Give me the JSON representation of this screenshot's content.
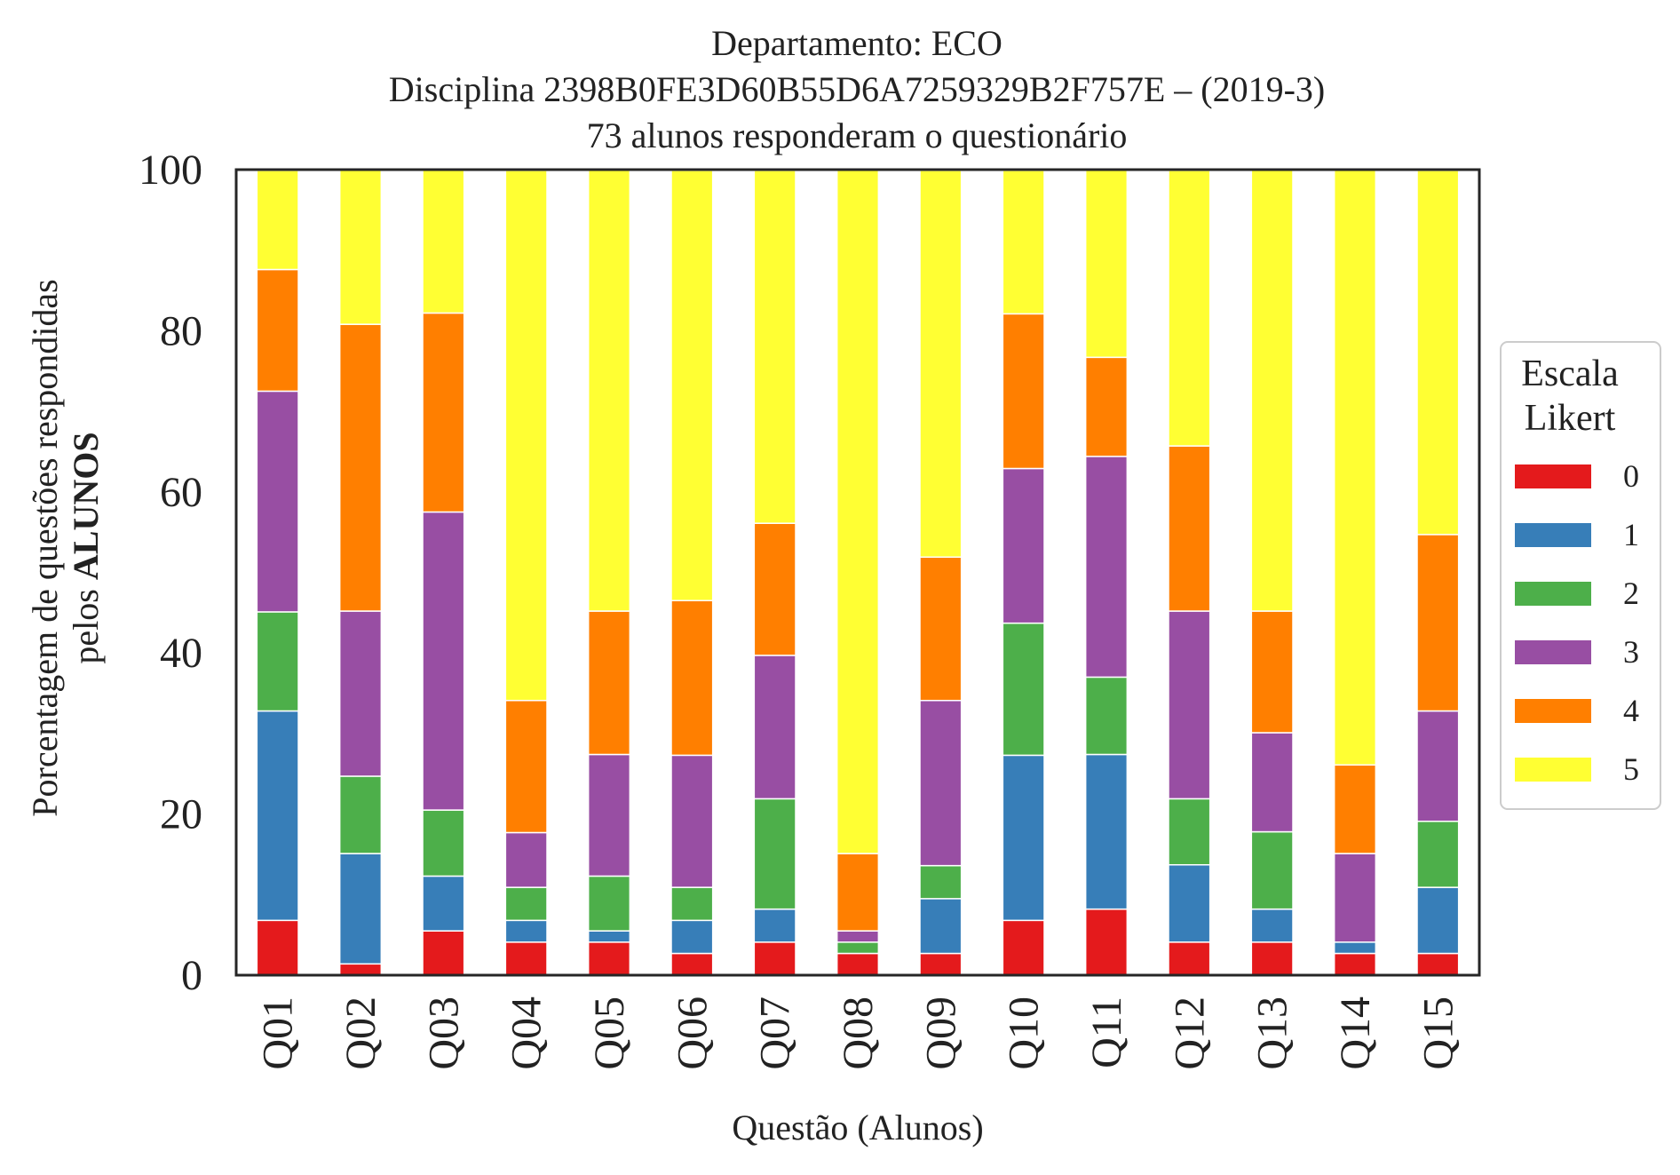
{
  "chart_data": {
    "type": "bar",
    "stacked": true,
    "title": "Departamento: ECO",
    "subtitle_line1": "Disciplina 2398B0FE3D60B55D6A7259329B2F757E – (2019-3)",
    "subtitle_line2": "73 alunos responderam o questionário",
    "ylabel_line1": "Porcentagem de questões respondidas",
    "ylabel_line2_prefix": "pelos ",
    "ylabel_line2_bold": "ALUNOS",
    "xlabel": "Questão (Alunos)",
    "ylim": [
      0,
      100
    ],
    "yticks": [
      "0",
      "20",
      "40",
      "60",
      "80",
      "100"
    ],
    "categories": [
      "Q01",
      "Q02",
      "Q03",
      "Q04",
      "Q05",
      "Q06",
      "Q07",
      "Q08",
      "Q09",
      "Q10",
      "Q11",
      "Q12",
      "Q13",
      "Q14",
      "Q15"
    ],
    "legend": {
      "title_line1": "Escala",
      "title_line2": "Likert",
      "position": "right"
    },
    "series": [
      {
        "name": "0",
        "color": "#e41a1c",
        "values": [
          6.8,
          1.4,
          5.5,
          4.1,
          4.1,
          2.7,
          4.1,
          2.7,
          2.7,
          6.8,
          8.2,
          4.1,
          4.1,
          2.7,
          2.7
        ]
      },
      {
        "name": "1",
        "color": "#377eb8",
        "values": [
          26.0,
          13.7,
          6.8,
          2.7,
          1.4,
          4.1,
          4.1,
          0.0,
          6.8,
          20.5,
          19.2,
          9.6,
          4.1,
          1.4,
          8.2
        ]
      },
      {
        "name": "2",
        "color": "#4daf4a",
        "values": [
          12.3,
          9.6,
          8.2,
          4.1,
          6.8,
          4.1,
          13.7,
          1.4,
          4.1,
          16.4,
          9.6,
          8.2,
          9.6,
          0.0,
          8.2
        ]
      },
      {
        "name": "3",
        "color": "#984ea3",
        "values": [
          27.4,
          20.5,
          37.0,
          6.8,
          15.1,
          16.4,
          17.8,
          1.4,
          20.5,
          19.2,
          27.4,
          23.3,
          12.3,
          11.0,
          13.7
        ]
      },
      {
        "name": "4",
        "color": "#ff7f00",
        "values": [
          15.1,
          35.6,
          24.7,
          16.4,
          17.8,
          19.2,
          16.4,
          9.6,
          17.8,
          19.2,
          12.3,
          20.5,
          15.1,
          11.0,
          21.9
        ]
      },
      {
        "name": "5",
        "color": "#ffff33",
        "values": [
          12.3,
          19.2,
          17.8,
          65.8,
          54.8,
          53.4,
          43.8,
          84.9,
          48.0,
          17.8,
          23.3,
          34.2,
          54.8,
          74.0,
          45.2
        ]
      }
    ]
  }
}
